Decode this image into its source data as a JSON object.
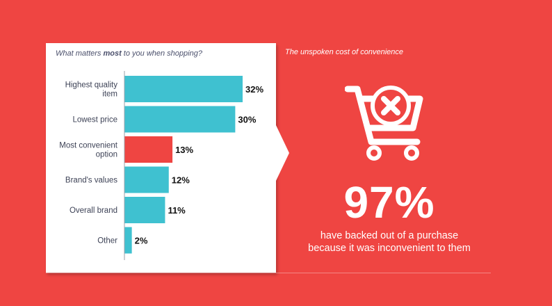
{
  "panel": {
    "title_pre": "What matters ",
    "title_bold": "most",
    "title_post": " to you when shopping?"
  },
  "right": {
    "title": "The unspoken cost of convenience",
    "stat": "97%",
    "caption_line1": "have backed out of a purchase",
    "caption_line2": "because it was inconvenient to them",
    "icon": "shopping-cart-x-icon"
  },
  "colors": {
    "background": "#ef4542",
    "bar_default": "#3fc1d0",
    "bar_highlight": "#ef4542",
    "panel": "#ffffff"
  },
  "chart_data": {
    "type": "bar",
    "orientation": "horizontal",
    "title": "What matters most to you when shopping?",
    "categories": [
      [
        "Highest quality",
        "item"
      ],
      [
        "Lowest price"
      ],
      [
        "Most convenient",
        "option"
      ],
      [
        "Brand's values"
      ],
      [
        "Overall brand"
      ],
      [
        "Other"
      ]
    ],
    "values": [
      32,
      30,
      13,
      12,
      11,
      2
    ],
    "labels": [
      "32%",
      "30%",
      "13%",
      "12%",
      "11%",
      "2%"
    ],
    "highlight_index": 2,
    "xlim": [
      0,
      32
    ],
    "grid": false
  }
}
